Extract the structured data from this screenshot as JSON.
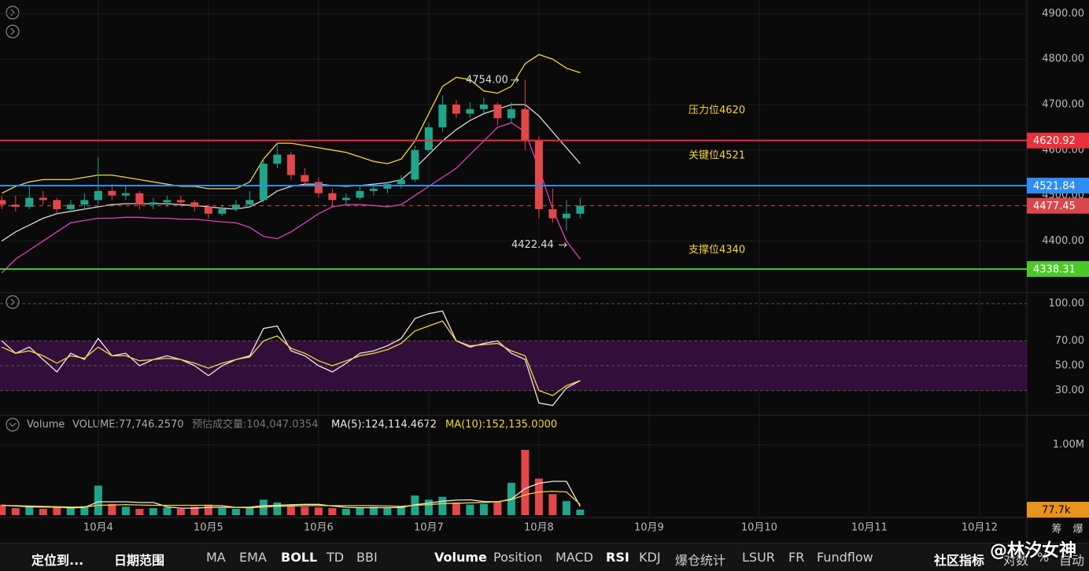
{
  "chart_data": [
    {
      "type": "candlestick",
      "x": [
        3,
        6,
        9,
        12,
        15,
        18,
        21,
        24,
        27,
        30,
        33,
        36,
        39,
        42,
        45,
        48,
        51,
        54,
        57,
        60,
        63,
        66,
        69,
        72,
        75,
        78,
        81,
        84,
        87,
        90,
        93,
        96,
        99,
        102,
        105,
        108,
        111,
        114,
        117,
        120,
        123,
        126,
        129
      ],
      "open": [
        4490,
        4480,
        4475,
        4495,
        4490,
        4470,
        4480,
        4490,
        4510,
        4500,
        4505,
        4480,
        4485,
        4490,
        4485,
        4475,
        4460,
        4470,
        4480,
        4490,
        4570,
        4590,
        4545,
        4530,
        4505,
        4490,
        4495,
        4510,
        4515,
        4525,
        4535,
        4600,
        4650,
        4700,
        4680,
        4690,
        4700,
        4670,
        4690,
        4620,
        4470,
        4450,
        4460
      ],
      "high": [
        4500,
        4500,
        4520,
        4510,
        4495,
        4490,
        4505,
        4585,
        4525,
        4520,
        4510,
        4495,
        4500,
        4500,
        4490,
        4480,
        4480,
        4490,
        4510,
        4580,
        4615,
        4595,
        4560,
        4540,
        4515,
        4505,
        4520,
        4525,
        4530,
        4545,
        4610,
        4660,
        4720,
        4710,
        4705,
        4715,
        4705,
        4705,
        4754,
        4630,
        4515,
        4490,
        4495
      ],
      "low": [
        4470,
        4465,
        4470,
        4480,
        4460,
        4465,
        4470,
        4480,
        4490,
        4490,
        4470,
        4470,
        4475,
        4475,
        4465,
        4450,
        4455,
        4465,
        4475,
        4485,
        4560,
        4535,
        4520,
        4495,
        4475,
        4480,
        4490,
        4500,
        4505,
        4515,
        4530,
        4595,
        4640,
        4670,
        4670,
        4680,
        4655,
        4660,
        4600,
        4450,
        4440,
        4422.44,
        4450
      ],
      "close": [
        4480,
        4475,
        4495,
        4490,
        4470,
        4480,
        4490,
        4510,
        4500,
        4505,
        4480,
        4485,
        4490,
        4485,
        4475,
        4460,
        4470,
        4480,
        4490,
        4570,
        4590,
        4545,
        4530,
        4505,
        4490,
        4495,
        4510,
        4515,
        4525,
        4535,
        4600,
        4650,
        4700,
        4680,
        4690,
        4700,
        4670,
        4690,
        4620,
        4470,
        4450,
        4460,
        4477.45
      ],
      "up_color": "#1fa58a",
      "down_color": "#e2474b",
      "series": [
        {
          "color": "#f5d43b",
          "values": [
            4505,
            4520,
            4530,
            4535,
            4535,
            4535,
            4540,
            4545,
            4545,
            4540,
            4535,
            4530,
            4525,
            4520,
            4520,
            4515,
            4515,
            4515,
            4530,
            4580,
            4615,
            4615,
            4610,
            4605,
            4600,
            4595,
            4585,
            4575,
            4570,
            4580,
            4620,
            4680,
            4740,
            4760,
            4755,
            4730,
            4725,
            4740,
            4790,
            4810,
            4800,
            4780,
            4770
          ]
        },
        {
          "color": "#d8d8d8",
          "values": [
            4400,
            4420,
            4435,
            4450,
            4460,
            4465,
            4470,
            4475,
            4480,
            4482,
            4482,
            4482,
            4482,
            4480,
            4478,
            4475,
            4472,
            4470,
            4475,
            4490,
            4510,
            4520,
            4525,
            4525,
            4522,
            4520,
            4522,
            4525,
            4528,
            4535,
            4560,
            4590,
            4620,
            4645,
            4665,
            4680,
            4690,
            4700,
            4700,
            4675,
            4640,
            4605,
            4570
          ]
        },
        {
          "color": "#e040c0",
          "values": [
            4330,
            4360,
            4380,
            4400,
            4420,
            4440,
            4445,
            4450,
            4450,
            4452,
            4452,
            4450,
            4450,
            4448,
            4448,
            4445,
            4442,
            4440,
            4430,
            4410,
            4405,
            4420,
            4440,
            4460,
            4475,
            4480,
            4480,
            4478,
            4475,
            4480,
            4500,
            4520,
            4540,
            4560,
            4590,
            4620,
            4650,
            4660,
            4640,
            4560,
            4470,
            4400,
            4360
          ]
        }
      ],
      "xlim": [
        2.6,
        226.3
      ],
      "xticks": [
        {
          "value": 24,
          "label": "10月4"
        },
        {
          "value": 48,
          "label": "10月5"
        },
        {
          "value": 72,
          "label": "10月6"
        },
        {
          "value": 96,
          "label": "10月7"
        },
        {
          "value": 120,
          "label": "10月8"
        },
        {
          "value": 144,
          "label": "10月9"
        },
        {
          "value": 168,
          "label": "10月10"
        },
        {
          "value": 192,
          "label": "10月11"
        },
        {
          "value": 216,
          "label": "10月12"
        }
      ],
      "ylim": [
        4290,
        4930
      ],
      "yticks": [
        {
          "value": 4900,
          "label": "4900.00"
        },
        {
          "value": 4800,
          "label": "4800.00"
        },
        {
          "value": 4700,
          "label": "4700.00"
        },
        {
          "value": 4600,
          "label": "4600.00"
        },
        {
          "value": 4500,
          "label": "4500.00"
        },
        {
          "value": 4400,
          "label": "4400.00"
        }
      ],
      "levels": [
        {
          "value": 4620.92,
          "label": "4620.92",
          "color": "#e8313a",
          "text": "压力位4620"
        },
        {
          "value": 4521.84,
          "label": "4521.84",
          "color": "#2f8cf5",
          "text": "关键位4521"
        },
        {
          "value": 4477.45,
          "label": "4477.45",
          "color": "#d9474b",
          "dashed": true
        },
        {
          "value": 4338.31,
          "label": "4338.31",
          "color": "#4cc82a",
          "text": "支撑位4340"
        }
      ],
      "peaks": [
        {
          "value": 4754,
          "label": "4754.00"
        },
        {
          "value": 4422.44,
          "label": "4422.44"
        }
      ]
    },
    {
      "type": "line",
      "series": [
        {
          "color": "#e8e8e8",
          "values": [
            70,
            60,
            65,
            55,
            45,
            60,
            55,
            72,
            58,
            60,
            50,
            55,
            58,
            55,
            50,
            42,
            50,
            55,
            58,
            80,
            82,
            62,
            58,
            50,
            45,
            52,
            60,
            62,
            66,
            72,
            88,
            92,
            94,
            70,
            65,
            68,
            70,
            60,
            55,
            20,
            18,
            32,
            38
          ]
        },
        {
          "color": "#f5d43b",
          "values": [
            65,
            60,
            62,
            58,
            52,
            58,
            56,
            65,
            58,
            58,
            54,
            55,
            56,
            55,
            52,
            48,
            52,
            55,
            57,
            70,
            74,
            64,
            60,
            54,
            50,
            54,
            58,
            60,
            63,
            68,
            78,
            82,
            86,
            70,
            66,
            67,
            68,
            62,
            58,
            30,
            26,
            34,
            38
          ]
        }
      ],
      "ylim": [
        12,
        107
      ],
      "yticks": [
        {
          "value": 100,
          "label": "100.00"
        },
        {
          "value": 70,
          "label": "70.00"
        },
        {
          "value": 50,
          "label": "50.00"
        },
        {
          "value": 30,
          "label": "30.00"
        }
      ],
      "band": [
        30,
        70
      ]
    },
    {
      "type": "bar",
      "title": "Volume",
      "subtitle": "VOLUME:77,746.2570",
      "estimate": "预估成交量:104,047.0354",
      "ma5_label": "MA(5):124,114.4672",
      "ma10_label": "MA(10):152,135.0000",
      "values": [
        150000,
        100000,
        120000,
        90000,
        110000,
        100000,
        130000,
        420000,
        160000,
        120000,
        90000,
        100000,
        110000,
        90000,
        120000,
        150000,
        100000,
        90000,
        110000,
        220000,
        180000,
        140000,
        120000,
        110000,
        100000,
        90000,
        110000,
        120000,
        100000,
        130000,
        280000,
        220000,
        260000,
        180000,
        150000,
        160000,
        200000,
        460000,
        930000,
        520000,
        300000,
        200000,
        77746.257
      ],
      "last_label": "77.7k",
      "series": [
        {
          "color": "#e8e8e8",
          "values": [
            140000,
            130000,
            120000,
            115000,
            114000,
            104000,
            110000,
            190000,
            190000,
            190000,
            180000,
            180000,
            120000,
            100000,
            100000,
            110000,
            114000,
            110000,
            114000,
            134000,
            140000,
            148000,
            154000,
            154000,
            130000,
            112000,
            106000,
            106000,
            106000,
            110000,
            148000,
            172000,
            198000,
            214000,
            218000,
            194000,
            190000,
            230000,
            380000,
            454000,
            482000,
            482000,
            124114.4672
          ]
        },
        {
          "color": "#f5d43b",
          "values": [
            140000,
            135000,
            130000,
            125000,
            120000,
            115000,
            115000,
            140000,
            145000,
            150000,
            145000,
            140000,
            140000,
            140000,
            140000,
            140000,
            135000,
            110000,
            105000,
            115000,
            125000,
            130000,
            135000,
            135000,
            135000,
            135000,
            135000,
            135000,
            130000,
            125000,
            140000,
            150000,
            165000,
            170000,
            175000,
            180000,
            190000,
            220000,
            290000,
            330000,
            340000,
            330000,
            152135
          ]
        }
      ],
      "ylim": [
        0,
        1120000
      ],
      "yticks": [
        {
          "value": 1000000,
          "label": "1.00M"
        }
      ]
    }
  ],
  "toolbar": [
    {
      "text": "定位到...",
      "active": true
    },
    {
      "text": "日期范围",
      "active": true
    },
    {
      "text": "MA"
    },
    {
      "text": "EMA"
    },
    {
      "text": "BOLL",
      "active": true
    },
    {
      "text": "TD"
    },
    {
      "text": "BBI"
    },
    {
      "text": "Volume",
      "active": true
    },
    {
      "text": "Position"
    },
    {
      "text": "MACD"
    },
    {
      "text": "RSI",
      "active": true
    },
    {
      "text": "KDJ"
    },
    {
      "text": "爆仓统计"
    },
    {
      "text": "LSUR"
    },
    {
      "text": "FR"
    },
    {
      "text": "Fundflow"
    },
    {
      "text": "社区指标",
      "active": true
    },
    {
      "text": "对数"
    },
    {
      "text": "%"
    },
    {
      "text": "自动"
    }
  ],
  "corner": [
    "筹",
    "爆"
  ],
  "watermark": "@林汐女神"
}
